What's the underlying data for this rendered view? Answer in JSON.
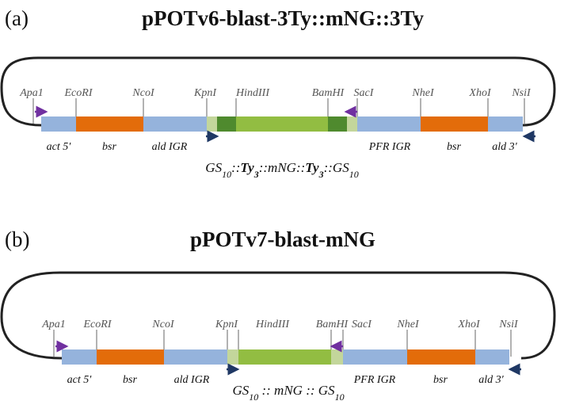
{
  "colors": {
    "backbone": "#222222",
    "utr_blue": "#95b3dc",
    "bsr_orange": "#e36c0a",
    "gs_light": "#c3d69b",
    "ty_dark": "#4f8a2e",
    "mng_green": "#92bd42",
    "primer_purple": "#7030a0",
    "primer_navy": "#1f3864",
    "site_line": "#666666"
  },
  "panels": [
    {
      "letter": "(a)",
      "title": "pPOTv6-blast-3Ty::mNG::3Ty",
      "sites": [
        "Apa1",
        "EcoRI",
        "NcoI",
        "KpnI",
        "HindIII",
        "BamHI",
        "SacI",
        "NheI",
        "XhoI",
        "NsiI"
      ],
      "regions": [
        "act 5′",
        "bsr",
        "ald IGR",
        "PFR IGR",
        "bsr",
        "ald 3′"
      ],
      "tag": {
        "gs_left": "GS",
        "gs_left_sub": "10",
        "sep1": "::",
        "ty_left": "Ty",
        "ty_left_sub": "3",
        "sep2": "::",
        "mng": "mNG",
        "sep3": "::",
        "ty_right": "Ty",
        "ty_right_sub": "3",
        "sep4": "::",
        "gs_right": "GS",
        "gs_right_sub": "10"
      }
    },
    {
      "letter": "(b)",
      "title": "pPOTv7-blast-mNG",
      "sites": [
        "Apa1",
        "EcoRI",
        "NcoI",
        "KpnI",
        "HindIII",
        "BamHI",
        "SacI",
        "NheI",
        "XhoI",
        "NsiI"
      ],
      "regions": [
        "act 5′",
        "bsr",
        "ald IGR",
        "PFR IGR",
        "bsr",
        "ald 3′"
      ],
      "tag": {
        "gs_left": "GS",
        "gs_left_sub": "10",
        "sep1": " :: ",
        "mng": "mNG",
        "sep2": " :: ",
        "gs_right": "GS",
        "gs_right_sub": "10"
      }
    }
  ]
}
